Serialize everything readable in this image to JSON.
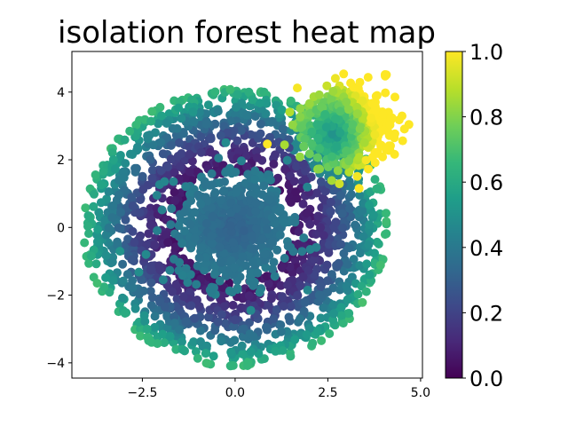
{
  "chart_data": {
    "type": "scatter",
    "title": "isolation forest heat map",
    "xlabel": "",
    "ylabel": "",
    "xlim": [
      -4.4,
      5.05
    ],
    "ylim": [
      -4.45,
      5.2
    ],
    "x_ticks": [
      -2.5,
      0.0,
      2.5,
      5.0
    ],
    "x_tick_labels": [
      "−2.5",
      "0.0",
      "2.5",
      "5.0"
    ],
    "y_ticks": [
      -4,
      -2,
      0,
      2,
      4
    ],
    "y_tick_labels": [
      "−4",
      "−2",
      "0",
      "2",
      "4"
    ],
    "grid": false,
    "colormap": "viridis",
    "colorbar": {
      "range": [
        0.0,
        1.0
      ],
      "ticks": [
        0.0,
        0.2,
        0.4,
        0.6,
        0.8,
        1.0
      ],
      "tick_labels": [
        "0.0",
        "0.2",
        "0.4",
        "0.6",
        "0.8",
        "1.0"
      ]
    },
    "clusters": [
      {
        "name": "central dense blob",
        "center": [
          0.0,
          0.0
        ],
        "spread": 1.0,
        "score_range": [
          0.3,
          0.45
        ]
      },
      {
        "name": "ring",
        "center": [
          0.0,
          0.0
        ],
        "radius": [
          1.6,
          4.1
        ],
        "score_range": [
          0.05,
          0.7
        ]
      },
      {
        "name": "upper-right dense blob",
        "center": [
          3.0,
          3.0
        ],
        "spread": 0.6,
        "score_range": [
          0.55,
          1.0
        ]
      }
    ]
  },
  "colors": {
    "viridis": [
      "#440154",
      "#482878",
      "#3e4989",
      "#31688e",
      "#26828e",
      "#1f9e89",
      "#35b779",
      "#6ece58",
      "#b5de2b",
      "#fde725"
    ]
  }
}
